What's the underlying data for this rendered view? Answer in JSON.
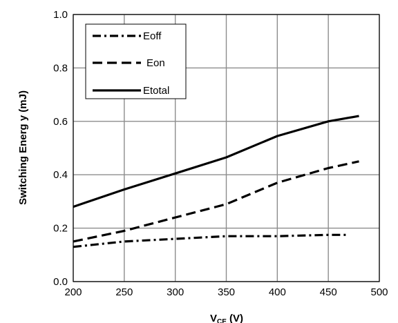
{
  "chart_data": {
    "type": "line",
    "xlabel": "V",
    "xlabel_sub": "CE",
    "xlabel_unit": " (V)",
    "ylabel": "Switching Energ y (mJ)",
    "xlim": [
      200,
      500
    ],
    "ylim": [
      0.0,
      1.0
    ],
    "x_ticks": [
      "200",
      "250",
      "300",
      "350",
      "400",
      "450",
      "500"
    ],
    "y_ticks": [
      "0.0",
      "0.2",
      "0.4",
      "0.6",
      "0.8",
      "1.0"
    ],
    "grid": true,
    "legend_position": "top-left",
    "series": [
      {
        "name": "Eoff",
        "dash": "dashdot",
        "x": [
          200,
          250,
          300,
          350,
          400,
          450,
          470
        ],
        "y": [
          0.13,
          0.15,
          0.16,
          0.17,
          0.17,
          0.175,
          0.175
        ]
      },
      {
        "name": "Eon",
        "dash": "dashed",
        "x": [
          200,
          250,
          300,
          350,
          400,
          450,
          480
        ],
        "y": [
          0.15,
          0.19,
          0.24,
          0.29,
          0.37,
          0.425,
          0.45
        ]
      },
      {
        "name": "Etotal",
        "dash": "solid",
        "x": [
          200,
          250,
          300,
          350,
          400,
          450,
          480
        ],
        "y": [
          0.28,
          0.345,
          0.405,
          0.465,
          0.545,
          0.6,
          0.62
        ]
      }
    ]
  }
}
